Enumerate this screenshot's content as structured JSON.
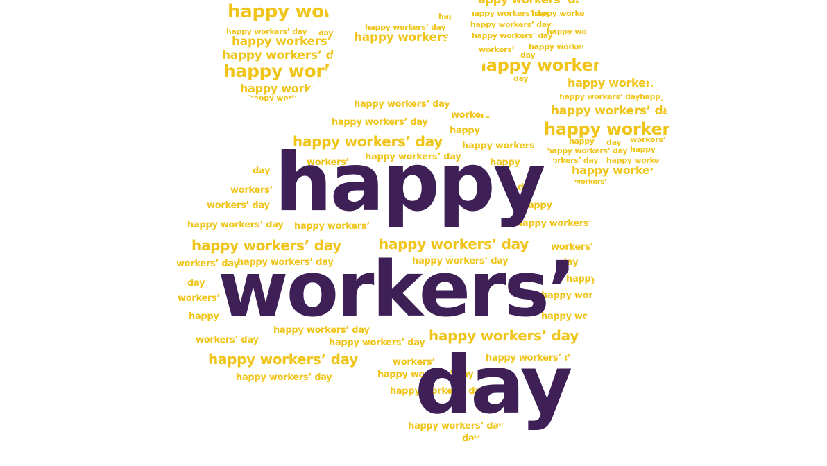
{
  "headline": {
    "line1": "happy",
    "line2": "workers’",
    "line3": "day"
  },
  "word_cloud": [
    "happy workers’ day",
    "happy workers’ day",
    "happy workers’ day",
    "happy workers’ day",
    "happy workers’ day",
    "happy workers’ day",
    "happy workers’ day",
    "happy workers’ day",
    "happy workers’ day",
    "happy workers’ day",
    "happy workers’ day",
    "happy workers’ day",
    "happy workers’ day",
    "happy workers’ day",
    "happy workers’ day",
    "happy workers’ day",
    "happy workers’ day",
    "happy workers’ day",
    "happy workers’ day",
    "happy workers’ day",
    "happy workers’ day",
    "happy workers’ day",
    "happy workers’ day",
    "happy workers’ day",
    "happy workers’ day",
    "happy workers’ day",
    "happy workers’ day",
    "happy workers’ day",
    "happy workers’ day",
    "workers’",
    "workers’",
    "workers’",
    "workers’",
    "workers’",
    "workers’",
    "workers’",
    "workers’",
    "workers’",
    "day",
    "day",
    "day",
    "day",
    "day",
    "day",
    "day",
    "happy",
    "happy",
    "happy",
    "happy",
    "happy",
    "happy",
    "happy",
    "happy",
    "happy workers’",
    "happy workers’",
    "happy workers’",
    "happy workers’",
    "happy workers’",
    "happy workers’",
    "happy workers’",
    "happy workers’",
    "happy workers’",
    "happy workers’",
    "workers’ day",
    "workers’ day",
    "workers’ day",
    "workers’ day",
    "workers’ day",
    "workers’ day"
  ],
  "colors": {
    "headline": "#3e2057",
    "cloud": "#f0c419",
    "background": "#ffffff"
  }
}
